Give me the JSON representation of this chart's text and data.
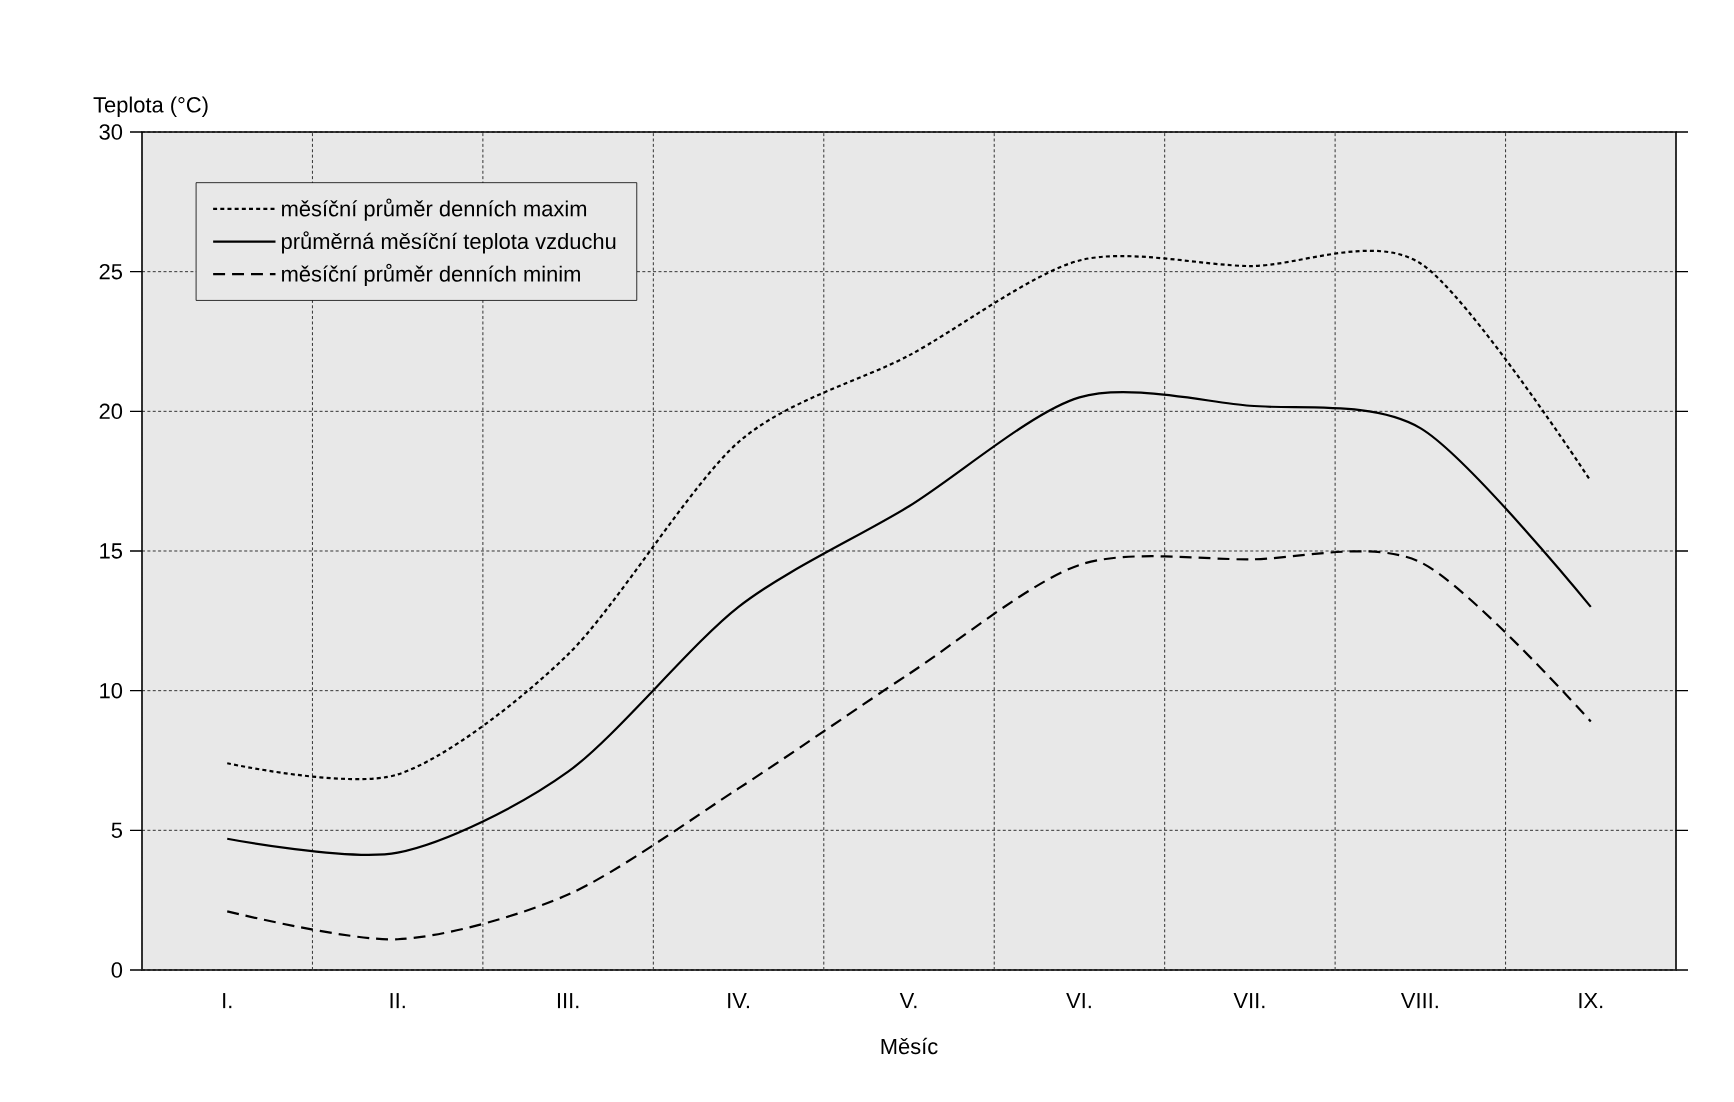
{
  "chart_data": {
    "type": "line",
    "xlabel": "Měsíc",
    "ylabel": "Teplota (°C)",
    "categories": [
      "I.",
      "II.",
      "III.",
      "IV.",
      "V.",
      "VI.",
      "VII.",
      "VIII.",
      "IX."
    ],
    "ylim": [
      0,
      30
    ],
    "yticks": [
      0,
      5,
      10,
      15,
      20,
      25,
      30
    ],
    "grid": true,
    "legend": "top left",
    "marker": "none",
    "series": [
      {
        "name": "měsíční průměr denních maxim",
        "color": "#000000",
        "line_style": "dotted",
        "values": [
          7.4,
          7.0,
          11.3,
          18.9,
          22.0,
          25.4,
          25.2,
          25.3,
          17.5
        ]
      },
      {
        "name": "průměrná měsíční teplota vzduchu",
        "color": "#000000",
        "line_style": "solid",
        "values": [
          4.7,
          4.2,
          7.1,
          13.0,
          16.6,
          20.5,
          20.2,
          19.4,
          13.0
        ]
      },
      {
        "name": "měsíční průměr denních minim",
        "color": "#000000",
        "line_style": "dashed",
        "values": [
          2.1,
          1.1,
          2.7,
          6.5,
          10.6,
          14.5,
          14.7,
          14.6,
          8.9
        ]
      }
    ]
  }
}
